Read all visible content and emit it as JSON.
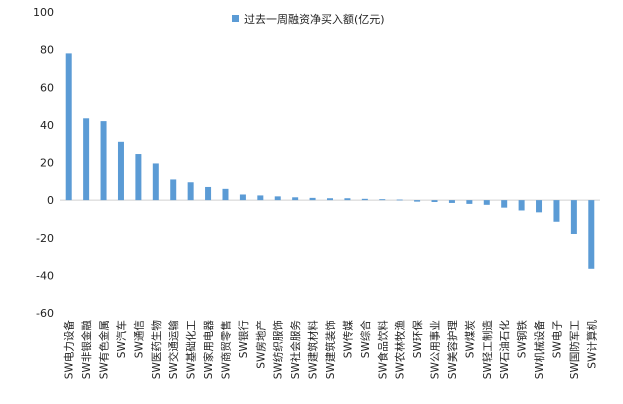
{
  "chart_data": {
    "type": "bar",
    "title": "",
    "xlabel": "",
    "ylabel": "",
    "legend_position": "top-center",
    "grid": false,
    "ylim": [
      -60,
      100
    ],
    "yticks": [
      100,
      80,
      60,
      40,
      20,
      0,
      -20,
      -40,
      -60
    ],
    "bar_color": "#5B9BD5",
    "categories": [
      "SW电力设备",
      "SW非银金融",
      "SW有色金属",
      "SW汽车",
      "SW通信",
      "SW医药生物",
      "SW交通运输",
      "SW基础化工",
      "SW家用电器",
      "SW商贸零售",
      "SW银行",
      "SW房地产",
      "SW纺织服饰",
      "SW社会服务",
      "SW建筑材料",
      "SW建筑装饰",
      "SW传媒",
      "SW综合",
      "SW食品饮料",
      "SW农林牧渔",
      "SW环保",
      "SW公用事业",
      "SW美容护理",
      "SW煤炭",
      "SW轻工制造",
      "SW石油石化",
      "SW钢铁",
      "SW机械设备",
      "SW电子",
      "SW国防军工",
      "SW计算机"
    ],
    "series": [
      {
        "name": "过去一周融资净买入额(亿元)",
        "values": [
          78,
          43.5,
          42,
          31,
          24.5,
          19.5,
          11,
          9.5,
          7,
          6,
          3,
          2.5,
          2,
          1.5,
          1.2,
          1,
          1,
          0.7,
          0.5,
          0.3,
          -0.8,
          -1,
          -1.5,
          -2,
          -2.5,
          -4,
          -5.5,
          -6.5,
          -11.5,
          -18,
          -36.5
        ]
      }
    ]
  }
}
